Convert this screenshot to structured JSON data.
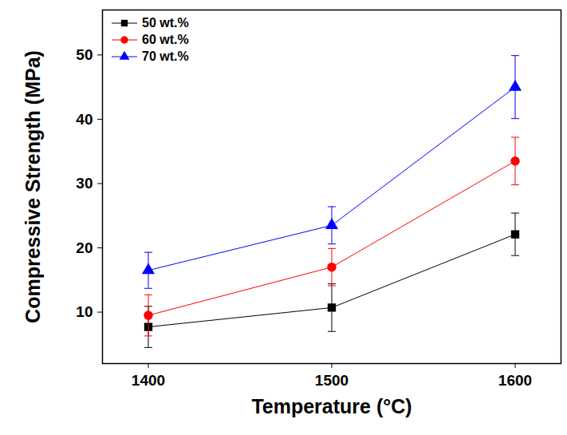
{
  "chart_data": {
    "type": "line",
    "x_label": "Temperature (°C)",
    "y_label": "Compressive Strength (MPa)",
    "x": [
      1400,
      1500,
      1600
    ],
    "xlim": [
      1375,
      1625
    ],
    "xticks": [
      1400,
      1500,
      1600
    ],
    "ylim": [
      2,
      57
    ],
    "yticks": [
      10,
      20,
      30,
      40,
      50
    ],
    "legend": "upper left",
    "series": [
      {
        "name": "50 wt.%",
        "color": "#000000",
        "marker": "square",
        "values": [
          7.7,
          10.7,
          22.1
        ],
        "errors": [
          3.2,
          3.7,
          3.3
        ]
      },
      {
        "name": "60 wt.%",
        "color": "#ff0000",
        "marker": "circle",
        "values": [
          9.5,
          17.0,
          33.5
        ],
        "errors": [
          3.2,
          2.9,
          3.7
        ]
      },
      {
        "name": "70 wt.%",
        "color": "#0000ff",
        "marker": "triangle",
        "values": [
          16.5,
          23.5,
          45.0
        ],
        "errors": [
          2.8,
          2.9,
          4.9
        ]
      }
    ]
  }
}
